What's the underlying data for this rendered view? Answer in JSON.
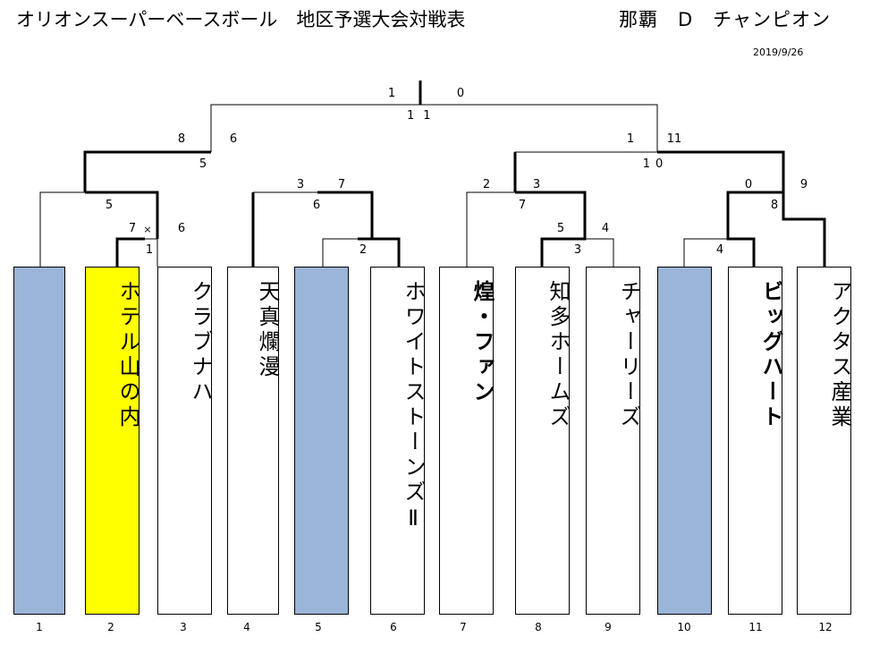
{
  "header": {
    "title": "オリオンスーパーベースボール　地区予選大会対戦表",
    "subtitle": "那覇　D　チャンピオン",
    "date": "2019/9/26"
  },
  "teams": [
    {
      "slot": "1",
      "name": "",
      "bye": true
    },
    {
      "slot": "2",
      "name": "ホテル山の内",
      "winner": true
    },
    {
      "slot": "3",
      "name": "クラブナハ"
    },
    {
      "slot": "4",
      "name": "天真爛漫"
    },
    {
      "slot": "5",
      "name": "",
      "bye": true
    },
    {
      "slot": "6",
      "name": "ホワイトストーンズⅡ"
    },
    {
      "slot": "7",
      "name": "煌・ファン",
      "bold": true
    },
    {
      "slot": "8",
      "name": "知多ホームズ"
    },
    {
      "slot": "9",
      "name": "チャーリーズ"
    },
    {
      "slot": "10",
      "name": "",
      "bye": true
    },
    {
      "slot": "11",
      "name": "ビッグハート",
      "bold": true
    },
    {
      "slot": "12",
      "name": "アクタス産業"
    }
  ],
  "matches": [
    {
      "game": "1",
      "left_score": "7",
      "right_score": "6",
      "mark": "×"
    },
    {
      "game": "2"
    },
    {
      "game": "3",
      "left_score": "5",
      "right_score": "4"
    },
    {
      "game": "4"
    },
    {
      "game": "5",
      "left_score": "5",
      "right_score": ""
    },
    {
      "game": "6",
      "left_score": "3",
      "right_score": "7"
    },
    {
      "game": "7",
      "left_score": "2",
      "right_score": "3"
    },
    {
      "game": "8",
      "left_score": "0",
      "right_score": "9"
    },
    {
      "game": "9",
      "left_score": "8",
      "right_score": "6"
    },
    {
      "game": "10",
      "left_score": "1",
      "right_score": "11"
    },
    {
      "game": "11",
      "left_score": "1",
      "right_score": "0"
    }
  ]
}
